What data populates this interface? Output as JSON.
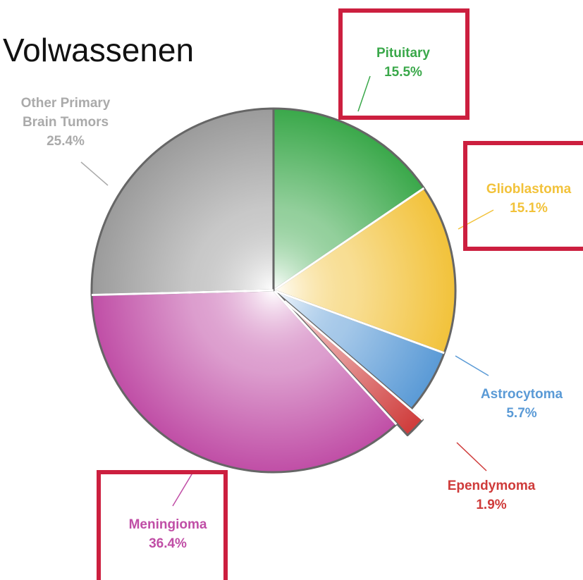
{
  "chart_data": {
    "type": "pie",
    "title": "Volwassenen",
    "categories": [
      "Pituitary",
      "Glioblastoma",
      "Astrocytoma",
      "Ependymoma",
      "Meningioma",
      "Other Primary Brain Tumors"
    ],
    "values": [
      15.5,
      15.1,
      5.7,
      1.9,
      36.4,
      25.4
    ],
    "value_labels": [
      "15.5%",
      "15.1%",
      "5.7%",
      "1.9%",
      "36.4%",
      "25.4%"
    ],
    "colors": [
      "#3aa84a",
      "#f2c23a",
      "#5a9ad6",
      "#cf3b3a",
      "#c04ea6",
      "#9b9b9b"
    ],
    "exploded": [
      false,
      false,
      false,
      true,
      false,
      false
    ]
  }
}
